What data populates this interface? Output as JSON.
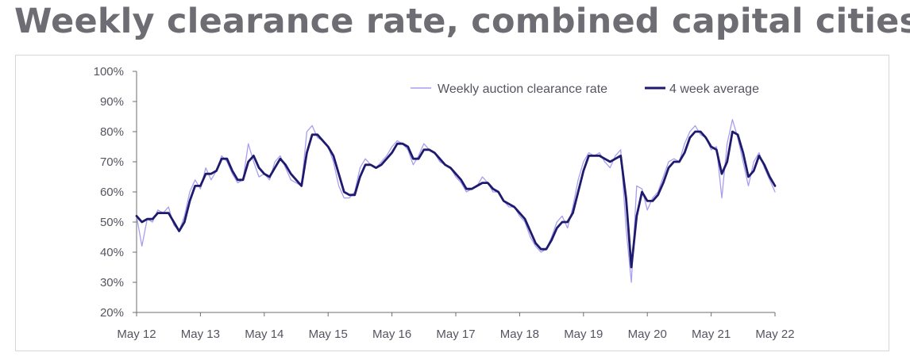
{
  "title": "Weekly clearance rate, combined capital cities",
  "colors": {
    "weekly": "#a79ef0",
    "avg": "#1e1a6e",
    "axis": "#6e6e6e",
    "text": "#555560"
  },
  "chart_data": {
    "type": "line",
    "title": "Weekly clearance rate, combined capital cities",
    "xlabel": "",
    "ylabel": "",
    "ylim": [
      20,
      100
    ],
    "x_range": [
      "2012-05",
      "2022-05"
    ],
    "y_ticks": [
      "20%",
      "30%",
      "40%",
      "50%",
      "60%",
      "70%",
      "80%",
      "90%",
      "100%"
    ],
    "x_ticks": [
      "May 12",
      "May 13",
      "May 14",
      "May 15",
      "May 16",
      "May 17",
      "May 18",
      "May 19",
      "May 20",
      "May 21",
      "May 22"
    ],
    "grid": false,
    "legend_position": "top-right",
    "series": [
      {
        "name": "Weekly auction clearance rate",
        "x": [
          "2012-05",
          "2012-06",
          "2012-07",
          "2012-08",
          "2012-09",
          "2012-10",
          "2012-11",
          "2012-12",
          "2013-01",
          "2013-02",
          "2013-03",
          "2013-04",
          "2013-05",
          "2013-06",
          "2013-07",
          "2013-08",
          "2013-09",
          "2013-10",
          "2013-11",
          "2013-12",
          "2014-01",
          "2014-02",
          "2014-03",
          "2014-04",
          "2014-05",
          "2014-06",
          "2014-07",
          "2014-08",
          "2014-09",
          "2014-10",
          "2014-11",
          "2014-12",
          "2015-01",
          "2015-02",
          "2015-03",
          "2015-04",
          "2015-05",
          "2015-06",
          "2015-07",
          "2015-08",
          "2015-09",
          "2015-10",
          "2015-11",
          "2015-12",
          "2016-01",
          "2016-02",
          "2016-03",
          "2016-04",
          "2016-05",
          "2016-06",
          "2016-07",
          "2016-08",
          "2016-09",
          "2016-10",
          "2016-11",
          "2016-12",
          "2017-01",
          "2017-02",
          "2017-03",
          "2017-04",
          "2017-05",
          "2017-06",
          "2017-07",
          "2017-08",
          "2017-09",
          "2017-10",
          "2017-11",
          "2017-12",
          "2018-01",
          "2018-02",
          "2018-03",
          "2018-04",
          "2018-05",
          "2018-06",
          "2018-07",
          "2018-08",
          "2018-09",
          "2018-10",
          "2018-11",
          "2018-12",
          "2019-01",
          "2019-02",
          "2019-03",
          "2019-04",
          "2019-05",
          "2019-06",
          "2019-07",
          "2019-08",
          "2019-09",
          "2019-10",
          "2019-11",
          "2019-12",
          "2020-01",
          "2020-02",
          "2020-03",
          "2020-04",
          "2020-05",
          "2020-06",
          "2020-07",
          "2020-08",
          "2020-09",
          "2020-10",
          "2020-11",
          "2020-12",
          "2021-01",
          "2021-02",
          "2021-03",
          "2021-04",
          "2021-05",
          "2021-06",
          "2021-07",
          "2021-08",
          "2021-09",
          "2021-10",
          "2021-11",
          "2021-12",
          "2022-01",
          "2022-02",
          "2022-03",
          "2022-04",
          "2022-05"
        ],
        "values": [
          52,
          42,
          51,
          50,
          54,
          53,
          55,
          49,
          47,
          52,
          60,
          64,
          61,
          68,
          64,
          67,
          72,
          70,
          66,
          63,
          64,
          76,
          70,
          65,
          66,
          64,
          70,
          72,
          68,
          64,
          63,
          62,
          80,
          82,
          78,
          77,
          75,
          70,
          62,
          58,
          58,
          60,
          68,
          71,
          69,
          68,
          70,
          72,
          75,
          77,
          76,
          74,
          69,
          72,
          76,
          74,
          73,
          70,
          69,
          68,
          65,
          63,
          60,
          61,
          62,
          65,
          63,
          60,
          60,
          57,
          55,
          55,
          52,
          50,
          45,
          42,
          40,
          41,
          45,
          50,
          52,
          48,
          55,
          64,
          70,
          73,
          72,
          73,
          70,
          68,
          72,
          74,
          48,
          30,
          62,
          61,
          54,
          58,
          60,
          65,
          70,
          71,
          70,
          76,
          80,
          82,
          79,
          78,
          74,
          75,
          58,
          76,
          84,
          78,
          70,
          62,
          70,
          73,
          68,
          64,
          60
        ]
      },
      {
        "name": "4 week average",
        "x": [
          "2012-05",
          "2012-06",
          "2012-07",
          "2012-08",
          "2012-09",
          "2012-10",
          "2012-11",
          "2012-12",
          "2013-01",
          "2013-02",
          "2013-03",
          "2013-04",
          "2013-05",
          "2013-06",
          "2013-07",
          "2013-08",
          "2013-09",
          "2013-10",
          "2013-11",
          "2013-12",
          "2014-01",
          "2014-02",
          "2014-03",
          "2014-04",
          "2014-05",
          "2014-06",
          "2014-07",
          "2014-08",
          "2014-09",
          "2014-10",
          "2014-11",
          "2014-12",
          "2015-01",
          "2015-02",
          "2015-03",
          "2015-04",
          "2015-05",
          "2015-06",
          "2015-07",
          "2015-08",
          "2015-09",
          "2015-10",
          "2015-11",
          "2015-12",
          "2016-01",
          "2016-02",
          "2016-03",
          "2016-04",
          "2016-05",
          "2016-06",
          "2016-07",
          "2016-08",
          "2016-09",
          "2016-10",
          "2016-11",
          "2016-12",
          "2017-01",
          "2017-02",
          "2017-03",
          "2017-04",
          "2017-05",
          "2017-06",
          "2017-07",
          "2017-08",
          "2017-09",
          "2017-10",
          "2017-11",
          "2017-12",
          "2018-01",
          "2018-02",
          "2018-03",
          "2018-04",
          "2018-05",
          "2018-06",
          "2018-07",
          "2018-08",
          "2018-09",
          "2018-10",
          "2018-11",
          "2018-12",
          "2019-01",
          "2019-02",
          "2019-03",
          "2019-04",
          "2019-05",
          "2019-06",
          "2019-07",
          "2019-08",
          "2019-09",
          "2019-10",
          "2019-11",
          "2019-12",
          "2020-01",
          "2020-02",
          "2020-03",
          "2020-04",
          "2020-05",
          "2020-06",
          "2020-07",
          "2020-08",
          "2020-09",
          "2020-10",
          "2020-11",
          "2020-12",
          "2021-01",
          "2021-02",
          "2021-03",
          "2021-04",
          "2021-05",
          "2021-06",
          "2021-07",
          "2021-08",
          "2021-09",
          "2021-10",
          "2021-11",
          "2021-12",
          "2022-01",
          "2022-02",
          "2022-03",
          "2022-04",
          "2022-05"
        ],
        "values": [
          52,
          50,
          51,
          51,
          53,
          53,
          53,
          50,
          47,
          50,
          57,
          62,
          62,
          66,
          66,
          67,
          71,
          71,
          67,
          64,
          64,
          70,
          72,
          68,
          66,
          65,
          68,
          71,
          69,
          66,
          64,
          62,
          73,
          79,
          79,
          77,
          75,
          72,
          66,
          60,
          59,
          59,
          65,
          69,
          69,
          68,
          69,
          71,
          73,
          76,
          76,
          75,
          71,
          71,
          74,
          74,
          73,
          71,
          69,
          68,
          66,
          64,
          61,
          61,
          62,
          63,
          63,
          61,
          60,
          57,
          56,
          55,
          53,
          51,
          47,
          43,
          41,
          41,
          44,
          48,
          50,
          50,
          53,
          60,
          67,
          72,
          72,
          72,
          71,
          70,
          71,
          72,
          58,
          35,
          52,
          60,
          57,
          57,
          59,
          63,
          68,
          70,
          70,
          73,
          78,
          80,
          80,
          78,
          75,
          74,
          66,
          70,
          80,
          79,
          73,
          65,
          67,
          72,
          69,
          65,
          62
        ]
      }
    ]
  }
}
